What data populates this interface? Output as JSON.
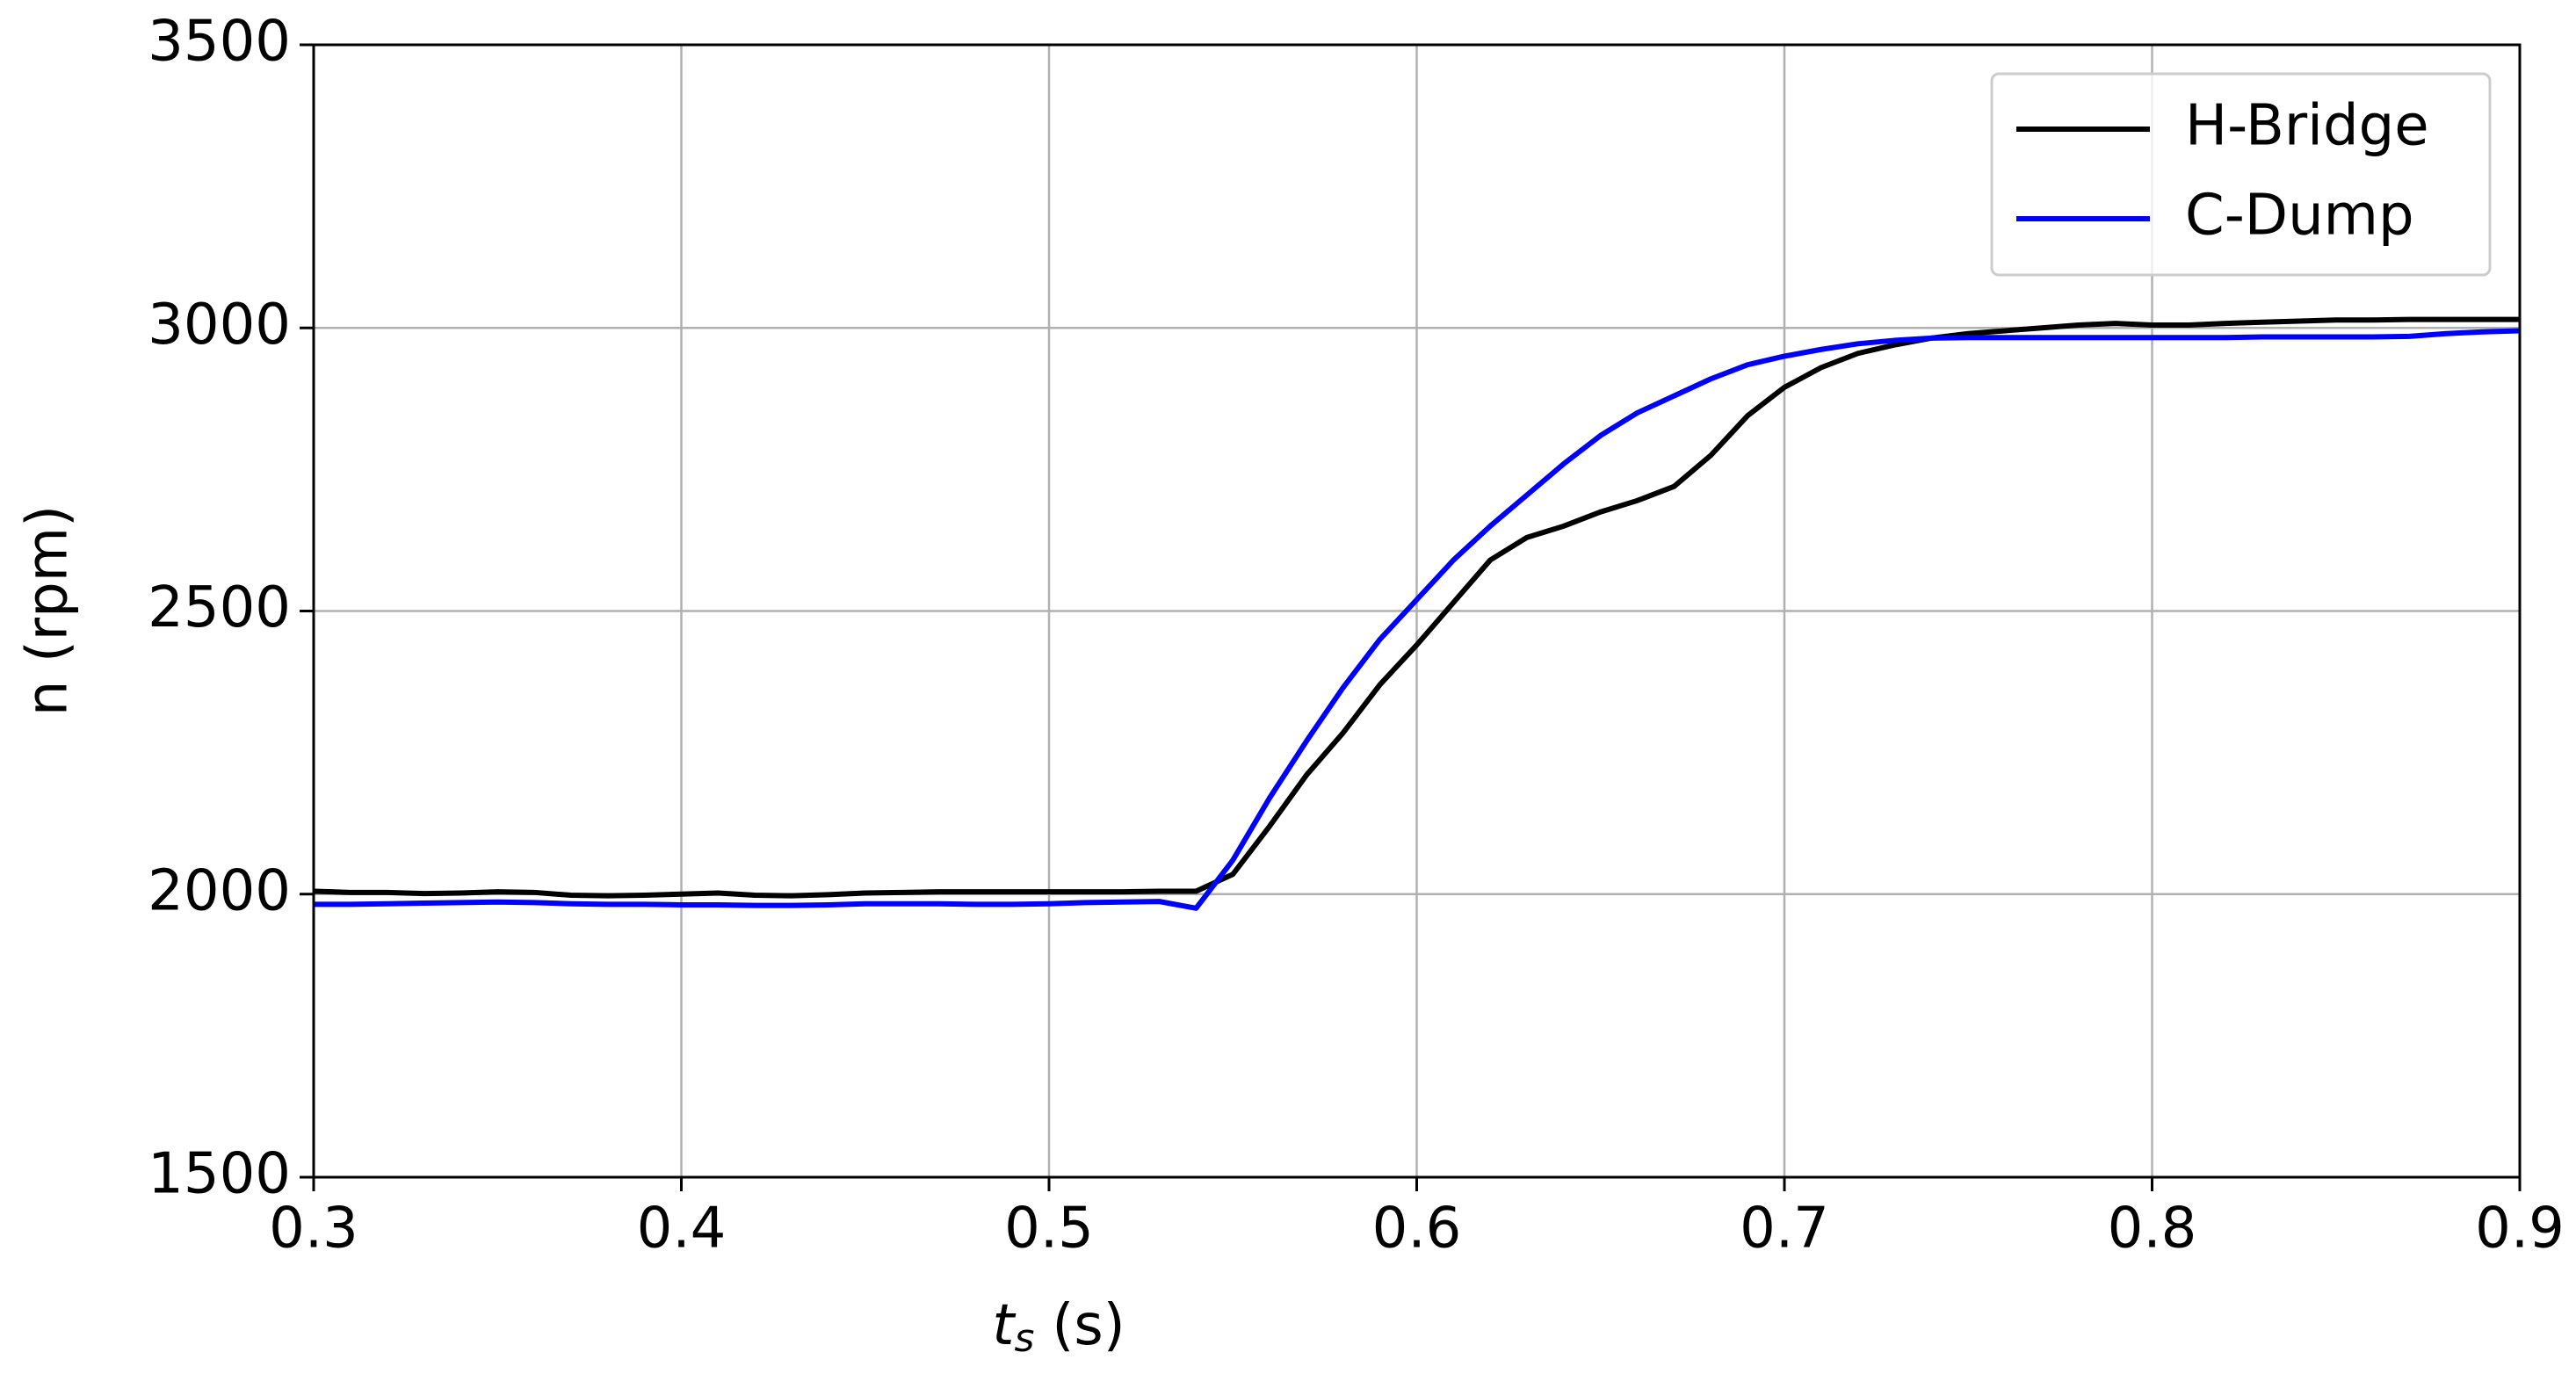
{
  "chart_data": {
    "type": "line",
    "xlabel": {
      "symbol": "t",
      "subscript": "s",
      "unit": "(s)"
    },
    "ylabel": "n (rpm)",
    "x": [
      0.3,
      0.31,
      0.32,
      0.33,
      0.34,
      0.35,
      0.36,
      0.37,
      0.38,
      0.39,
      0.4,
      0.41,
      0.42,
      0.43,
      0.44,
      0.45,
      0.46,
      0.47,
      0.48,
      0.49,
      0.5,
      0.51,
      0.52,
      0.53,
      0.54,
      0.55,
      0.56,
      0.57,
      0.58,
      0.59,
      0.6,
      0.61,
      0.62,
      0.63,
      0.64,
      0.65,
      0.66,
      0.67,
      0.68,
      0.69,
      0.7,
      0.71,
      0.72,
      0.73,
      0.74,
      0.75,
      0.76,
      0.77,
      0.78,
      0.79,
      0.8,
      0.81,
      0.82,
      0.83,
      0.84,
      0.85,
      0.86,
      0.87,
      0.88,
      0.89,
      0.9
    ],
    "series": [
      {
        "name": "H-Bridge",
        "color": "#000000",
        "values": [
          2005,
          2003,
          2003,
          2001,
          2002,
          2004,
          2003,
          1998,
          1997,
          1998,
          2000,
          2002,
          1998,
          1997,
          1999,
          2002,
          2003,
          2004,
          2004,
          2004,
          2004,
          2004,
          2004,
          2005,
          2005,
          2035,
          2120,
          2210,
          2285,
          2370,
          2440,
          2515,
          2590,
          2630,
          2650,
          2675,
          2695,
          2720,
          2775,
          2845,
          2895,
          2930,
          2955,
          2970,
          2982,
          2990,
          2995,
          3000,
          3005,
          3008,
          3005,
          3005,
          3008,
          3010,
          3012,
          3014,
          3014,
          3015,
          3015,
          3015,
          3015
        ]
      },
      {
        "name": "C-Dump",
        "color": "#0000ff",
        "values": [
          1982,
          1982,
          1983,
          1984,
          1985,
          1986,
          1985,
          1983,
          1982,
          1982,
          1981,
          1981,
          1980,
          1980,
          1981,
          1983,
          1983,
          1983,
          1982,
          1982,
          1983,
          1985,
          1986,
          1987,
          1975,
          2060,
          2170,
          2270,
          2365,
          2450,
          2520,
          2590,
          2650,
          2705,
          2760,
          2810,
          2850,
          2880,
          2910,
          2935,
          2950,
          2962,
          2972,
          2978,
          2982,
          2983,
          2983,
          2983,
          2983,
          2983,
          2983,
          2983,
          2983,
          2984,
          2984,
          2984,
          2984,
          2985,
          2990,
          2993,
          2995
        ]
      }
    ],
    "xlim": [
      0.3,
      0.9
    ],
    "xticks": [
      0.3,
      0.4,
      0.5,
      0.6,
      0.7,
      0.8,
      0.9
    ],
    "ylim": [
      1500,
      3500
    ],
    "yticks": [
      1500,
      2000,
      2500,
      3000,
      3500
    ],
    "grid": true,
    "legend": "upper right"
  }
}
